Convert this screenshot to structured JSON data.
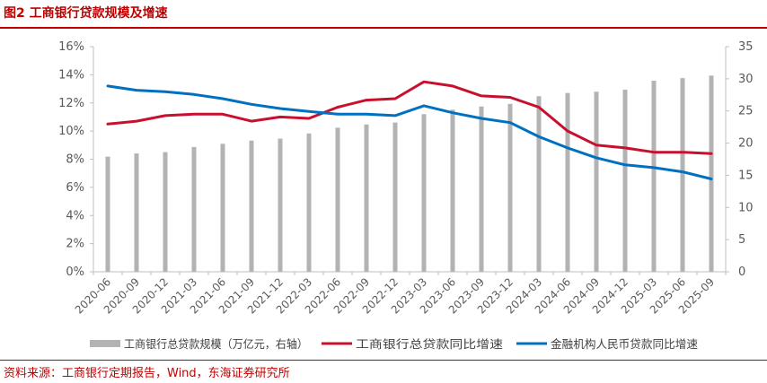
{
  "figure_title": "图2  工商银行贷款规模及增速",
  "source_note": "资料来源：工商银行定期报告，Wind，东海证券研究所",
  "colors": {
    "title": "#c00000",
    "bars": "#b3b3b3",
    "line_icbc": "#c8102e",
    "line_financial": "#0070c0",
    "axis": "#bfbfbf",
    "text": "#595959"
  },
  "chart_data": {
    "type": "bar+line",
    "categories": [
      "2020-06",
      "2020-09",
      "2020-12",
      "2021-03",
      "2021-06",
      "2021-09",
      "2021-12",
      "2022-03",
      "2022-06",
      "2022-09",
      "2022-12",
      "2023-03",
      "2023-06",
      "2023-09",
      "2023-12",
      "2024-03",
      "2024-06",
      "2024-09",
      "2024-12",
      "2025-03",
      "2025-06",
      "2025-09"
    ],
    "left_axis": {
      "ylim": [
        0,
        16
      ],
      "ticks": [
        "0%",
        "2%",
        "4%",
        "6%",
        "8%",
        "10%",
        "12%",
        "14%",
        "16%"
      ],
      "unit": "%"
    },
    "right_axis": {
      "ylim": [
        0,
        35
      ],
      "ticks": [
        "0",
        "5",
        "10",
        "15",
        "20",
        "25",
        "30",
        "35"
      ]
    },
    "grid": false,
    "legend_position": "bottom",
    "series": [
      {
        "name": "工商银行总贷款规模（万亿元，右轴）",
        "type": "bar",
        "axis": "right",
        "values": [
          17.9,
          18.4,
          18.6,
          19.4,
          19.9,
          20.4,
          20.7,
          21.5,
          22.4,
          22.9,
          23.2,
          24.5,
          25.2,
          25.7,
          26.1,
          27.3,
          27.8,
          28.0,
          28.3,
          29.7,
          30.1,
          30.5
        ]
      },
      {
        "name": "工商银行总贷款同比增速",
        "type": "line",
        "axis": "left",
        "values": [
          10.5,
          10.7,
          11.1,
          11.2,
          11.2,
          10.7,
          11.0,
          10.9,
          11.7,
          12.2,
          12.3,
          13.5,
          13.2,
          12.5,
          12.4,
          11.7,
          10.0,
          9.0,
          8.8,
          8.5,
          8.5,
          8.4
        ]
      },
      {
        "name": "金融机构人民币贷款同比增速",
        "type": "line",
        "axis": "left",
        "values": [
          13.2,
          12.9,
          12.8,
          12.6,
          12.3,
          11.9,
          11.6,
          11.4,
          11.2,
          11.2,
          11.1,
          11.8,
          11.3,
          10.9,
          10.6,
          9.6,
          8.8,
          8.1,
          7.6,
          7.4,
          7.1,
          6.6
        ]
      }
    ]
  }
}
